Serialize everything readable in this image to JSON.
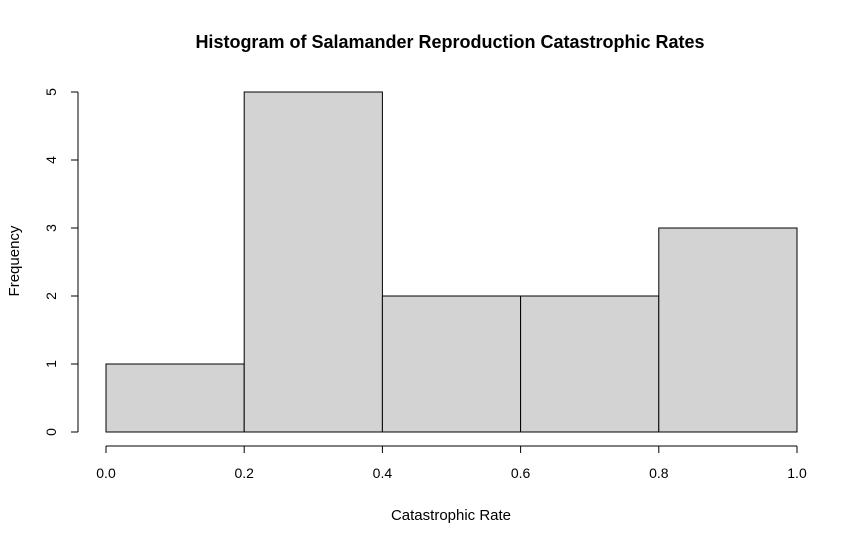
{
  "chart_data": {
    "type": "bar",
    "subtype": "histogram",
    "title": "Histogram of Salamander Reproduction Catastrophic Rates",
    "xlabel": "Catastrophic Rate",
    "ylabel": "Frequency",
    "bins": [
      {
        "start": 0.0,
        "end": 0.2,
        "count": 1
      },
      {
        "start": 0.2,
        "end": 0.4,
        "count": 5
      },
      {
        "start": 0.4,
        "end": 0.6,
        "count": 2
      },
      {
        "start": 0.6,
        "end": 0.8,
        "count": 2
      },
      {
        "start": 0.8,
        "end": 1.0,
        "count": 3
      }
    ],
    "xlim": [
      0.0,
      1.0
    ],
    "ylim": [
      0,
      5
    ],
    "x_ticks": [
      "0.0",
      "0.2",
      "0.4",
      "0.6",
      "0.8",
      "1.0"
    ],
    "y_ticks": [
      "0",
      "1",
      "2",
      "3",
      "4",
      "5"
    ],
    "grid": false,
    "bar_color": "#d3d3d3",
    "edge_color": "#000000"
  }
}
